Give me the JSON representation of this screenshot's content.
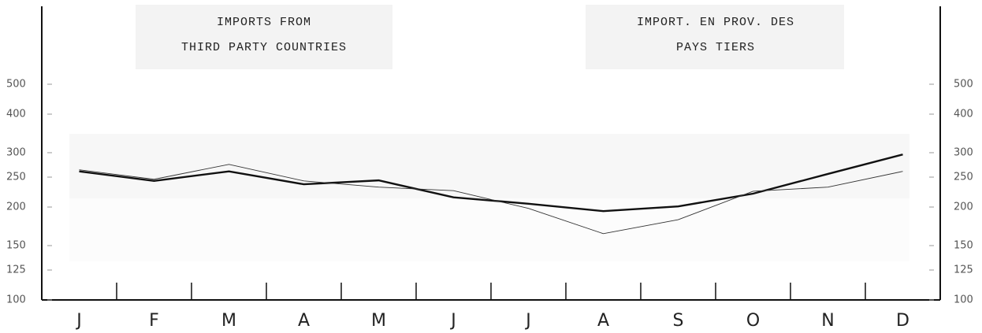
{
  "chart_data": {
    "type": "line",
    "titles": [
      [
        "IMPORTS FROM",
        "THIRD PARTY COUNTRIES"
      ],
      [
        "IMPORT. EN PROV. DES",
        "PAYS TIERS"
      ]
    ],
    "categories": [
      "J",
      "F",
      "M",
      "A",
      "M",
      "J",
      "J",
      "A",
      "S",
      "O",
      "N",
      "D"
    ],
    "series": [
      {
        "color": "#111111",
        "width": 2.4,
        "values": [
          261,
          243,
          261,
          237,
          244,
          215,
          205,
          194,
          201,
          221,
          256,
          296
        ]
      },
      {
        "color": "#333333",
        "width": 0.9,
        "values": [
          264,
          246,
          275,
          243,
          232,
          226,
          198,
          164,
          182,
          225,
          232,
          261
        ]
      }
    ],
    "ylim": [
      100,
      500
    ],
    "yscale": "log",
    "yticks": [
      100,
      125,
      150,
      200,
      250,
      300,
      400,
      500
    ]
  }
}
